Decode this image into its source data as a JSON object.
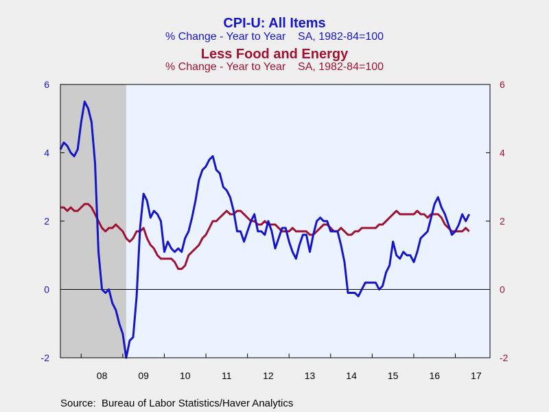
{
  "chart_data": {
    "type": "line",
    "source": "Source:  Bureau of Labor Statistics/Haver Analytics",
    "titles": [
      {
        "main": "CPI-U: All Items",
        "sub": "% Change - Year to Year    SA, 1982-84=100",
        "color": "#1414c8"
      },
      {
        "main": "Less Food and Energy",
        "sub": "% Change - Year to Year    SA, 1982-84=100",
        "color": "#a01030"
      }
    ],
    "x_labels": [
      "08",
      "09",
      "10",
      "11",
      "12",
      "13",
      "14",
      "15",
      "16",
      "17"
    ],
    "x_range": [
      2007.5,
      2017.833
    ],
    "ylim": [
      -2,
      6
    ],
    "y_ticks": [
      -2,
      0,
      2,
      4,
      6
    ],
    "left_axis_color": "#1414c8",
    "right_axis_color": "#a01030",
    "shaded_region": {
      "from": 2007.5,
      "to": 2009.0833
    },
    "plot_background": "#eaf3ff",
    "shade_color": "#cccccc",
    "series": [
      {
        "name": "CPI-U: All Items",
        "color": "#1414c8",
        "start": 2007.5,
        "step": 0.083333,
        "values": [
          4.1,
          4.3,
          4.2,
          4.0,
          3.9,
          4.1,
          4.9,
          5.5,
          5.3,
          4.9,
          3.7,
          1.1,
          0.0,
          -0.1,
          0.0,
          -0.4,
          -0.6,
          -1.0,
          -1.3,
          -2.0,
          -1.5,
          -1.4,
          -0.2,
          1.8,
          2.8,
          2.6,
          2.1,
          2.3,
          2.2,
          2.0,
          1.1,
          1.4,
          1.2,
          1.1,
          1.2,
          1.1,
          1.5,
          1.7,
          2.1,
          2.6,
          3.2,
          3.5,
          3.6,
          3.8,
          3.9,
          3.5,
          3.4,
          3.0,
          2.9,
          2.7,
          2.3,
          1.7,
          1.7,
          1.4,
          1.7,
          2.0,
          2.2,
          1.7,
          1.7,
          1.6,
          2.0,
          1.7,
          1.2,
          1.5,
          1.8,
          1.8,
          1.4,
          1.1,
          0.9,
          1.3,
          1.6,
          1.6,
          1.1,
          1.6,
          2.0,
          2.1,
          2.0,
          2.0,
          1.7,
          1.7,
          1.7,
          1.3,
          0.8,
          -0.1,
          -0.1,
          -0.1,
          -0.2,
          0.0,
          0.2,
          0.2,
          0.2,
          0.2,
          0.0,
          0.1,
          0.5,
          0.7,
          1.4,
          1.0,
          0.9,
          1.1,
          1.0,
          1.0,
          0.8,
          1.1,
          1.5,
          1.6,
          1.7,
          2.1,
          2.5,
          2.7,
          2.4,
          2.2,
          1.9,
          1.6,
          1.7,
          1.9,
          2.2,
          2.0,
          2.2
        ]
      },
      {
        "name": "Less Food and Energy",
        "color": "#a01030",
        "start": 2007.5,
        "step": 0.083333,
        "values": [
          2.4,
          2.4,
          2.3,
          2.4,
          2.3,
          2.3,
          2.4,
          2.5,
          2.5,
          2.4,
          2.2,
          2.0,
          1.8,
          1.7,
          1.8,
          1.8,
          1.9,
          1.8,
          1.7,
          1.5,
          1.4,
          1.5,
          1.7,
          1.7,
          1.8,
          1.5,
          1.3,
          1.2,
          1.0,
          0.9,
          0.9,
          0.9,
          0.9,
          0.8,
          0.6,
          0.6,
          0.7,
          1.0,
          1.1,
          1.2,
          1.3,
          1.5,
          1.6,
          1.8,
          2.0,
          2.0,
          2.1,
          2.2,
          2.3,
          2.2,
          2.2,
          2.3,
          2.3,
          2.2,
          2.1,
          2.0,
          2.0,
          1.9,
          1.9,
          2.0,
          1.9,
          1.9,
          1.9,
          1.8,
          1.7,
          1.7,
          1.7,
          1.8,
          1.7,
          1.7,
          1.7,
          1.7,
          1.6,
          1.6,
          1.7,
          1.8,
          1.9,
          1.9,
          1.8,
          1.7,
          1.7,
          1.8,
          1.7,
          1.6,
          1.6,
          1.7,
          1.7,
          1.8,
          1.8,
          1.8,
          1.8,
          1.8,
          1.9,
          1.9,
          2.0,
          2.1,
          2.2,
          2.3,
          2.2,
          2.2,
          2.2,
          2.2,
          2.2,
          2.3,
          2.2,
          2.2,
          2.1,
          2.2,
          2.2,
          2.2,
          2.1,
          1.9,
          1.8,
          1.7,
          1.7,
          1.7,
          1.7,
          1.8,
          1.7
        ]
      }
    ]
  }
}
